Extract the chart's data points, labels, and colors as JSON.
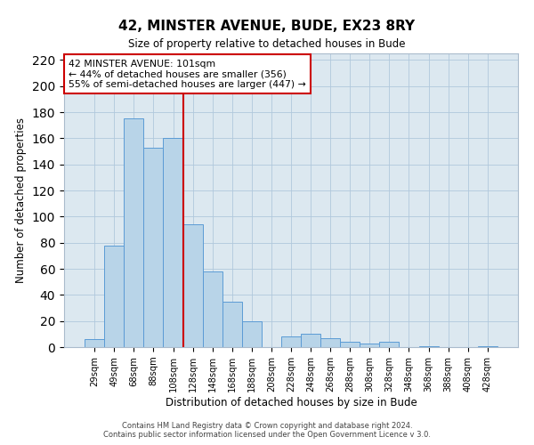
{
  "title": "42, MINSTER AVENUE, BUDE, EX23 8RY",
  "subtitle": "Size of property relative to detached houses in Bude",
  "xlabel": "Distribution of detached houses by size in Bude",
  "ylabel": "Number of detached properties",
  "bar_labels": [
    "29sqm",
    "49sqm",
    "68sqm",
    "88sqm",
    "108sqm",
    "128sqm",
    "148sqm",
    "168sqm",
    "188sqm",
    "208sqm",
    "228sqm",
    "248sqm",
    "268sqm",
    "288sqm",
    "308sqm",
    "328sqm",
    "348sqm",
    "368sqm",
    "388sqm",
    "408sqm",
    "428sqm"
  ],
  "bar_values": [
    6,
    78,
    175,
    153,
    160,
    94,
    58,
    35,
    20,
    0,
    8,
    10,
    7,
    4,
    3,
    4,
    0,
    1,
    0,
    0,
    1
  ],
  "bar_color": "#b8d4e8",
  "bar_edge_color": "#5b9bd5",
  "plot_bg_color": "#dce8f0",
  "background_color": "#ffffff",
  "grid_color": "#b0c8dc",
  "vline_x": 4.5,
  "vline_color": "#cc0000",
  "ylim": [
    0,
    225
  ],
  "yticks": [
    0,
    20,
    40,
    60,
    80,
    100,
    120,
    140,
    160,
    180,
    200,
    220
  ],
  "annotation_title": "42 MINSTER AVENUE: 101sqm",
  "annotation_line1": "← 44% of detached houses are smaller (356)",
  "annotation_line2": "55% of semi-detached houses are larger (447) →",
  "annotation_box_color": "#ffffff",
  "annotation_box_edge": "#cc0000",
  "footnote1": "Contains HM Land Registry data © Crown copyright and database right 2024.",
  "footnote2": "Contains public sector information licensed under the Open Government Licence v 3.0."
}
